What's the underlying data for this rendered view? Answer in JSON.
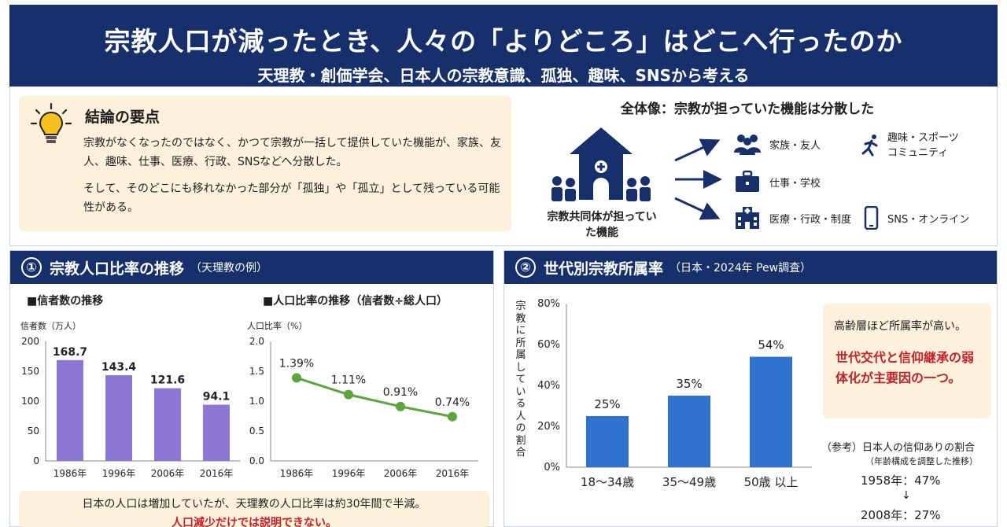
{
  "header": {
    "title": "宗教人口が減ったとき、人々の「よりどころ」はどこへ行ったのか",
    "subtitle": "天理教・創価学会、日本人の宗教意識、孤独、趣味、SNSから考える"
  },
  "summary": {
    "title": "結論の要点",
    "p1": "宗教がなくなったのではなく、かつて宗教が一括して提供していた機能が、家族、友人、趣味、仕事、医療、行政、SNSなどへ分散した。",
    "p2": "そして、そのどこにも移れなかった部分が「孤独」や「孤立」として残っている可能性がある。"
  },
  "overview": {
    "title": "全体像：宗教が担っていた機能は分散した",
    "church_label": "宗教共同体が担っていた機能",
    "functions": {
      "family": "家族・友人",
      "hobby": "趣味・スポーツ\nコミュニティ",
      "work": "仕事・学校",
      "medical": "医療・行政・制度",
      "sns": "SNS・オンライン"
    }
  },
  "panel1": {
    "num": "①",
    "title": "宗教人口比率の推移",
    "note": "（天理教の例）",
    "left_sub": "■信者数の推移",
    "left_unit": "信者数（万人）",
    "right_sub": "■人口比率の推移（信者数÷総人口）",
    "right_unit": "人口比率（%）",
    "note_line1": "日本の人口は増加していたが、天理教の人口比率は約30年間で半減。",
    "note_line2": "人口減少だけでは説明できない。"
  },
  "panel2": {
    "num": "②",
    "title": "世代別宗教所属率",
    "note": "（日本・2024年 Pew調査）",
    "ylabel": "宗教に所属している人の割合",
    "callout_1": "高齢層ほど所属率が高い。",
    "callout_2": "世代交代と信仰継承の弱体化が主要因の一つ。",
    "ref_title": "（参考）日本人の信仰ありの割合",
    "ref_note": "（年齢構成を調整した推移）",
    "ref_v1": "1958年：47%",
    "ref_arrow": "↓",
    "ref_v2": "2008年：27%"
  },
  "colors": {
    "navy": "#17306b",
    "bar_purple": "#8b78d4",
    "line_green": "#5fa33c",
    "bar_blue": "#2f72cf",
    "beige": "#fdf1dc",
    "red": "#c8202a"
  },
  "chart_data": [
    {
      "type": "bar",
      "title": "信者数の推移",
      "ylabel": "信者数（万人）",
      "categories": [
        "1986年",
        "1996年",
        "2006年",
        "2016年"
      ],
      "values": [
        168.7,
        143.4,
        121.6,
        94.1
      ],
      "labels": [
        "168.7",
        "143.4",
        "121.6",
        "94.1"
      ],
      "ylim": [
        0,
        200
      ],
      "yticks": [
        "0",
        "50",
        "100",
        "150",
        "200"
      ]
    },
    {
      "type": "line",
      "title": "人口比率の推移（信者数÷総人口）",
      "ylabel": "人口比率（%）",
      "categories": [
        "1986年",
        "1996年",
        "2006年",
        "2016年"
      ],
      "values": [
        1.39,
        1.11,
        0.91,
        0.74
      ],
      "labels": [
        "1.39%",
        "1.11%",
        "0.91%",
        "0.74%"
      ],
      "ylim": [
        0,
        2
      ],
      "yticks": [
        "0.0",
        "0.5",
        "1.0",
        "1.5",
        "2.0"
      ]
    },
    {
      "type": "bar",
      "title": "世代別宗教所属率",
      "ylabel": "宗教に所属している人の割合",
      "categories": [
        "18〜34歳",
        "35〜49歳",
        "50歳 以上"
      ],
      "values": [
        25,
        35,
        54
      ],
      "labels": [
        "25%",
        "35%",
        "54%"
      ],
      "ylim": [
        0,
        80
      ],
      "yticks": [
        "0%",
        "20%",
        "40%",
        "60%",
        "80%"
      ]
    }
  ]
}
